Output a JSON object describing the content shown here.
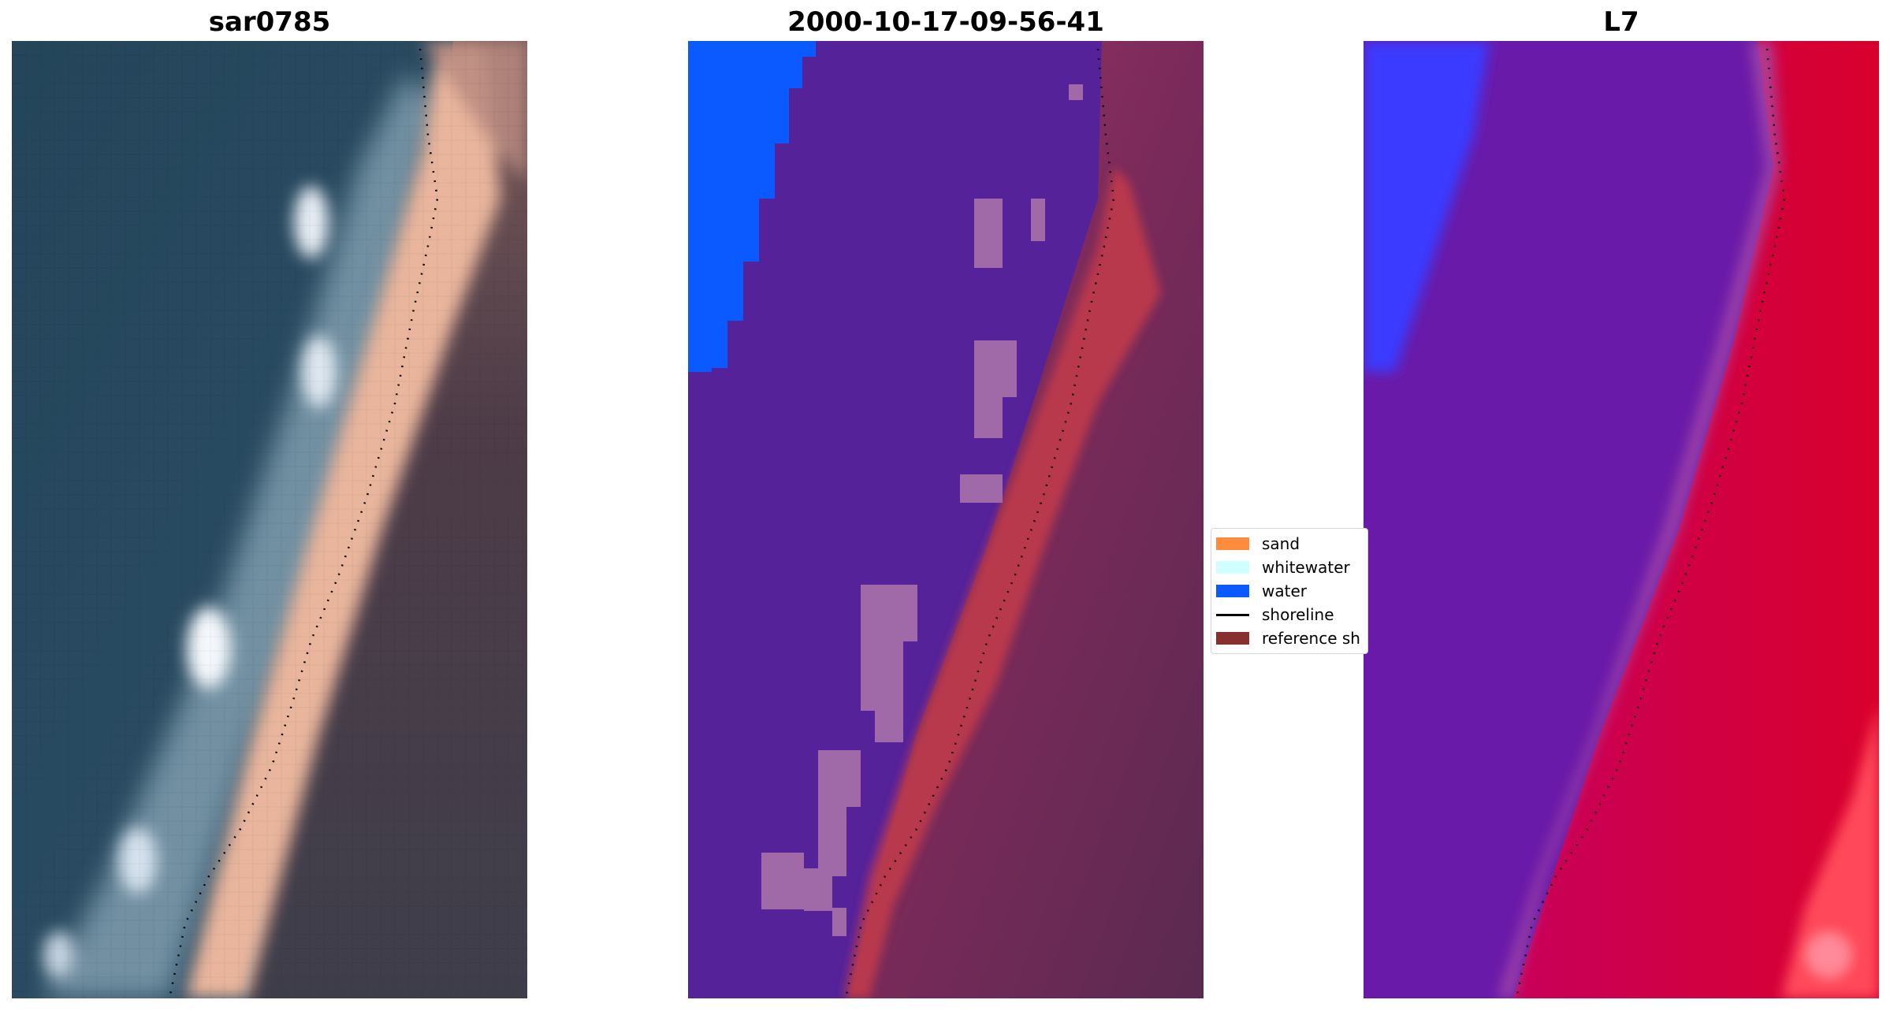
{
  "panels": [
    {
      "title": "sar0785",
      "kind": "rgb"
    },
    {
      "title": "2000-10-17-09-56-41",
      "kind": "classified"
    },
    {
      "title": "L7",
      "kind": "index"
    }
  ],
  "legend": {
    "items": [
      {
        "label": "sand",
        "color": "#ff8c3c",
        "type": "patch"
      },
      {
        "label": "whitewater",
        "color": "#d2ffff",
        "type": "patch"
      },
      {
        "label": "water",
        "color": "#0a5aff",
        "type": "patch"
      },
      {
        "label": "shoreline",
        "color": "#000000",
        "type": "line"
      },
      {
        "label": "reference sh",
        "color": "#8b2e2e",
        "type": "patch"
      }
    ]
  },
  "colors": {
    "deep_water": "#2b4a5a",
    "beach_sand": "#e8b39a",
    "land_dark": "#4a3a45",
    "surf": "#c9dde8",
    "class_water": "#0a5aff",
    "class_other": "#55229a",
    "class_whitewater_tint": "#9b6aa6",
    "class_sand_tint": "#b8344c",
    "land_magenta": "#8a2a5e",
    "index_blue": "#3a3aff",
    "index_purple": "#6a1aa8",
    "index_red": "#d00030",
    "shoreline_dots": "#000000"
  }
}
